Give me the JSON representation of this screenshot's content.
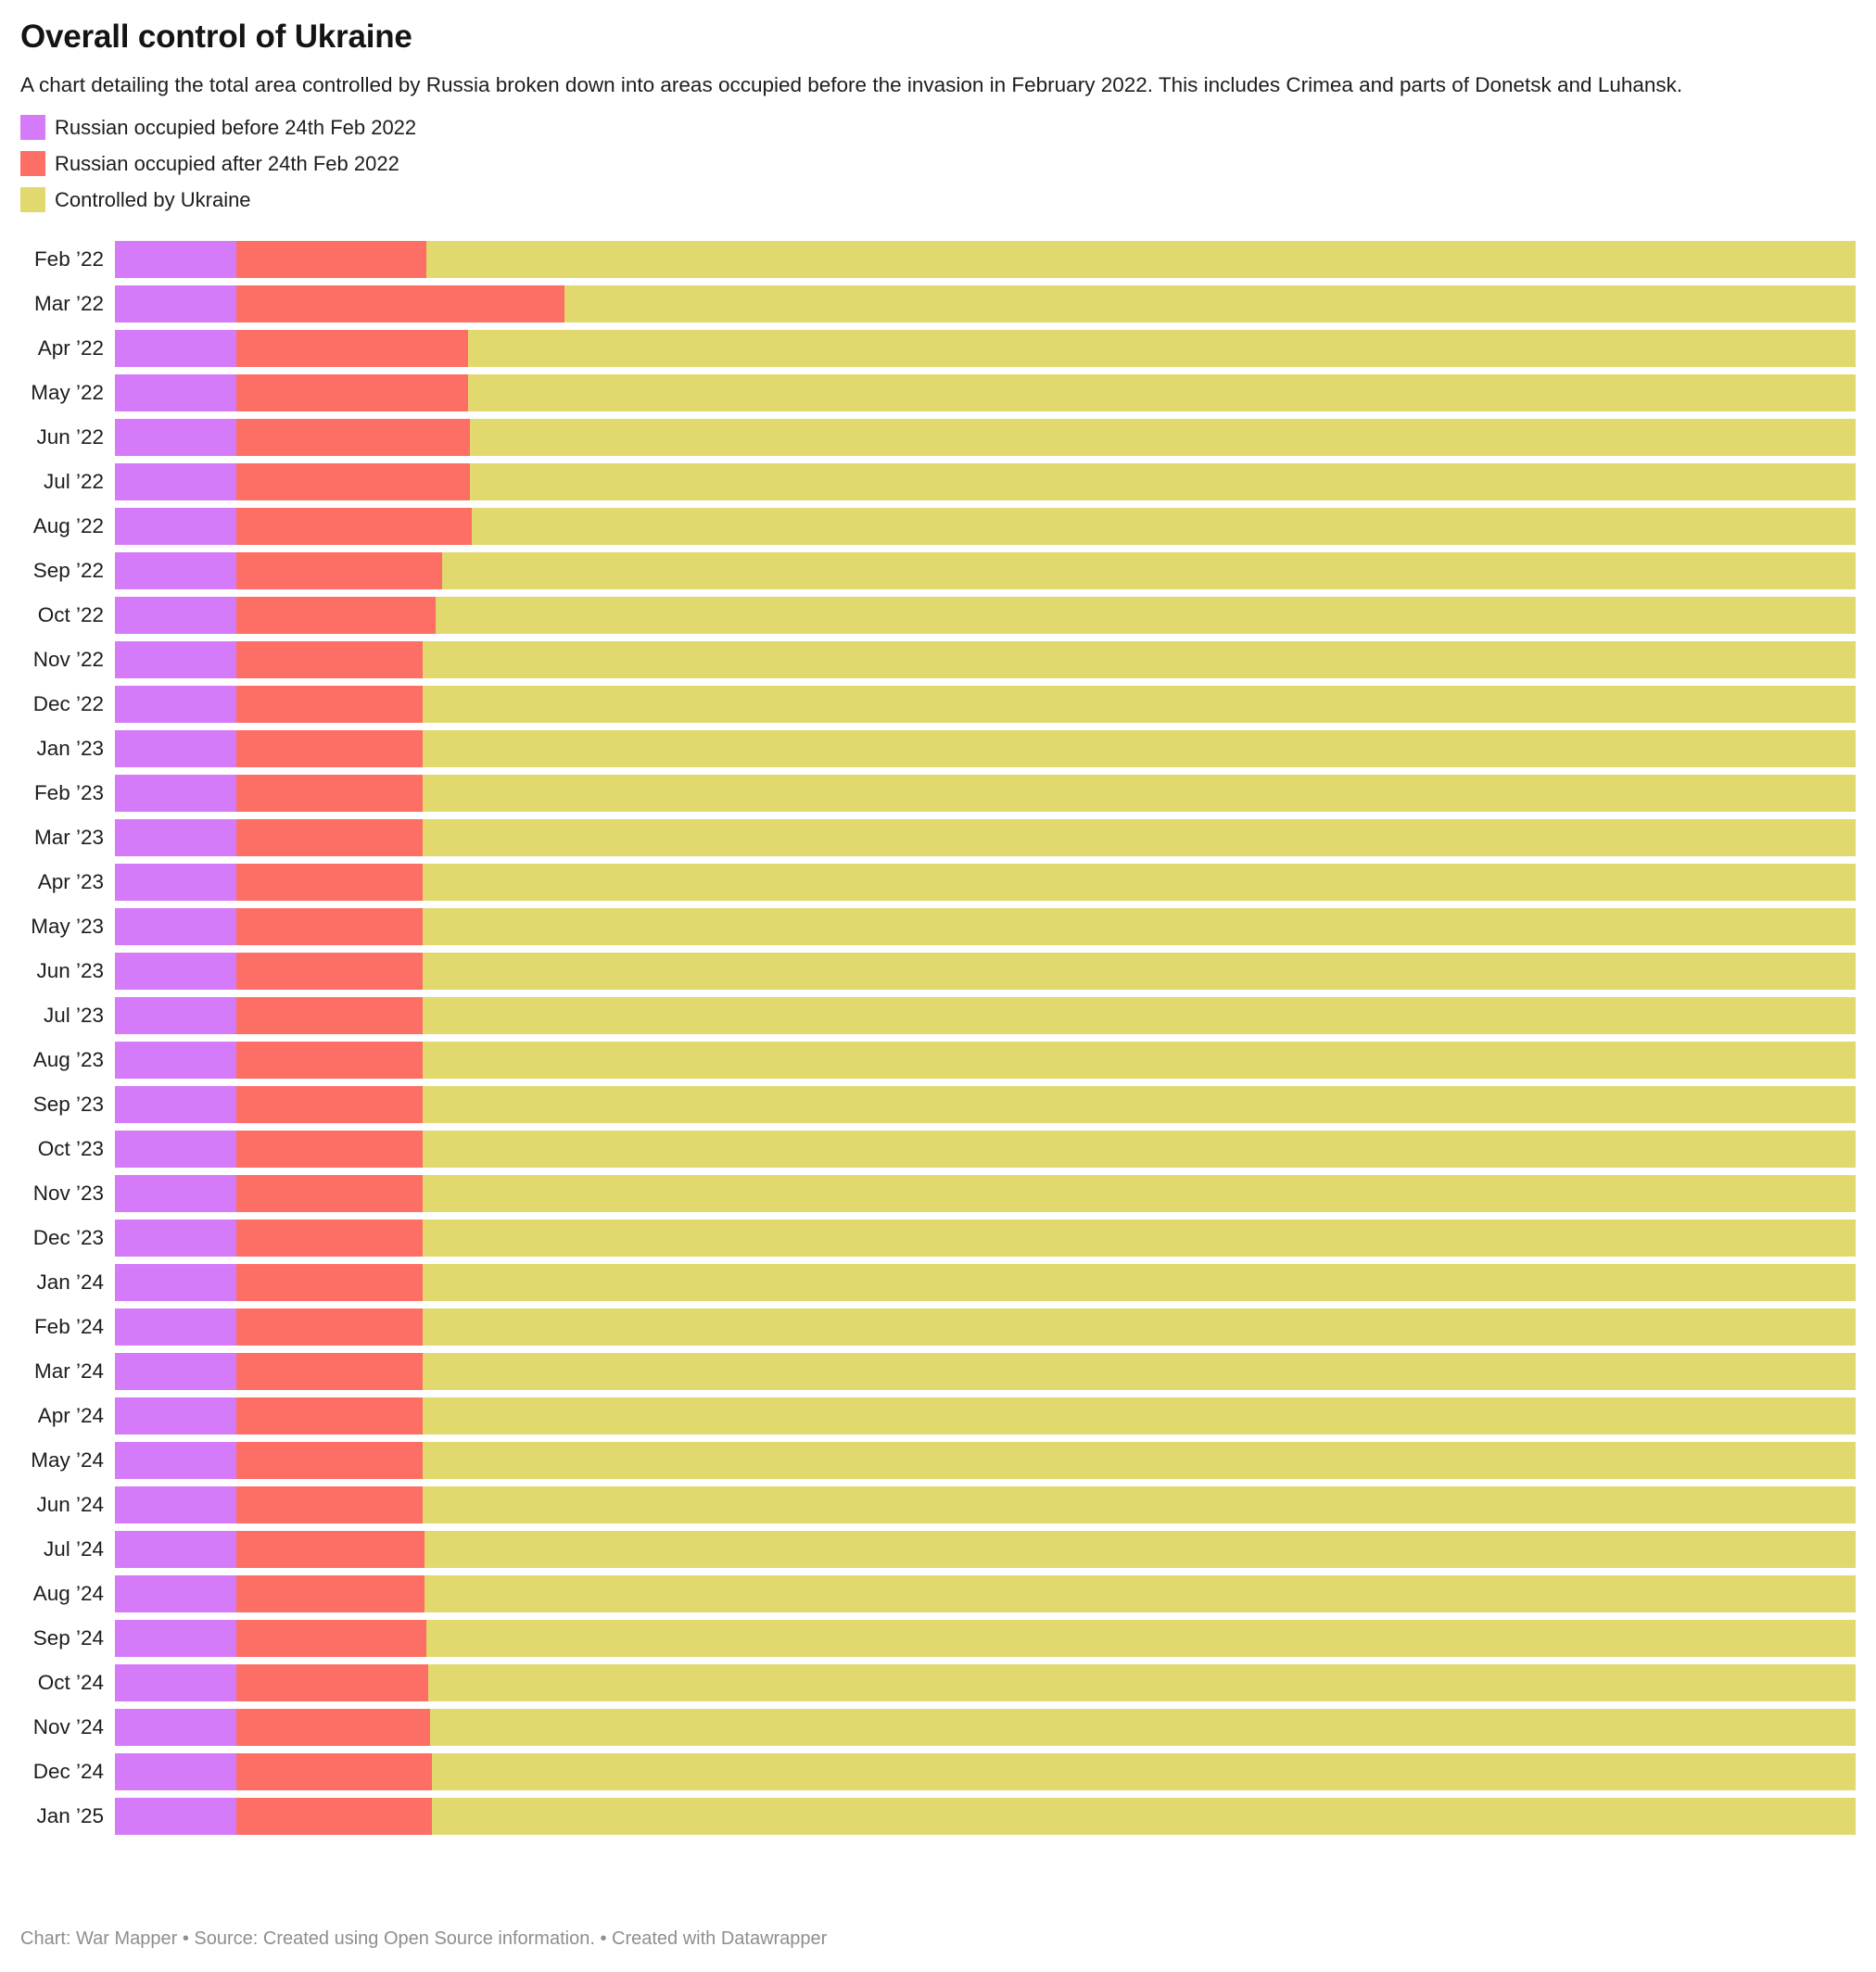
{
  "header": {
    "title": "Overall control of Ukraine",
    "subtitle": "A chart detailing the total area controlled by Russia broken down into areas occupied before the invasion in February 2022. This includes Crimea and parts of Donetsk and Luhansk."
  },
  "legend": {
    "items": [
      {
        "label": "Russian occupied before 24th Feb 2022",
        "color": "#d57af8"
      },
      {
        "label": "Russian occupied after 24th Feb 2022",
        "color": "#fd6e64"
      },
      {
        "label": "Controlled by Ukraine",
        "color": "#e1d96e"
      }
    ]
  },
  "chart_data": {
    "type": "bar",
    "variant": "stacked-horizontal-normalized",
    "title": "Overall control of Ukraine",
    "xlabel": "",
    "ylabel": "",
    "xlim": [
      0,
      100
    ],
    "unit": "percent of Ukraine's total area",
    "grid": false,
    "axis_labels_visible": false,
    "legend_position": "top-left",
    "categories": [
      "Feb ’22",
      "Mar ’22",
      "Apr ’22",
      "May ’22",
      "Jun ’22",
      "Jul ’22",
      "Aug ’22",
      "Sep ’22",
      "Oct ’22",
      "Nov ’22",
      "Dec ’22",
      "Jan ’23",
      "Feb ’23",
      "Mar ’23",
      "Apr ’23",
      "May ’23",
      "Jun ’23",
      "Jul ’23",
      "Aug ’23",
      "Sep ’23",
      "Oct ’23",
      "Nov ’23",
      "Dec ’23",
      "Jan ’24",
      "Feb ’24",
      "Mar ’24",
      "Apr ’24",
      "May ’24",
      "Jun ’24",
      "Jul ’24",
      "Aug ’24",
      "Sep ’24",
      "Oct ’24",
      "Nov ’24",
      "Dec ’24",
      "Jan ’25"
    ],
    "series": [
      {
        "name": "Russian occupied before 24th Feb 2022",
        "color": "#d57af8",
        "values": [
          7.0,
          7.0,
          7.0,
          7.0,
          7.0,
          7.0,
          7.0,
          7.0,
          7.0,
          7.0,
          7.0,
          7.0,
          7.0,
          7.0,
          7.0,
          7.0,
          7.0,
          7.0,
          7.0,
          7.0,
          7.0,
          7.0,
          7.0,
          7.0,
          7.0,
          7.0,
          7.0,
          7.0,
          7.0,
          7.0,
          7.0,
          7.0,
          7.0,
          7.0,
          7.0,
          7.0
        ]
      },
      {
        "name": "Russian occupied after 24th Feb 2022",
        "color": "#fd6e64",
        "values": [
          10.9,
          18.8,
          13.3,
          13.3,
          13.4,
          13.4,
          13.5,
          11.8,
          11.4,
          10.7,
          10.7,
          10.7,
          10.7,
          10.7,
          10.7,
          10.7,
          10.7,
          10.7,
          10.7,
          10.7,
          10.7,
          10.7,
          10.7,
          10.7,
          10.7,
          10.7,
          10.7,
          10.7,
          10.7,
          10.8,
          10.8,
          10.9,
          11.0,
          11.1,
          11.2,
          11.2
        ]
      },
      {
        "name": "Controlled by Ukraine",
        "color": "#e1d96e",
        "values": [
          82.1,
          74.2,
          79.7,
          79.7,
          79.6,
          79.6,
          79.5,
          81.2,
          81.6,
          82.3,
          82.3,
          82.3,
          82.3,
          82.3,
          82.3,
          82.3,
          82.3,
          82.3,
          82.3,
          82.3,
          82.3,
          82.3,
          82.3,
          82.3,
          82.3,
          82.3,
          82.3,
          82.3,
          82.3,
          82.2,
          82.2,
          82.1,
          82.0,
          81.9,
          81.8,
          81.8
        ]
      }
    ]
  },
  "footer": {
    "text": "Chart: War Mapper • Source: Created using Open Source information. • Created with Datawrapper"
  }
}
